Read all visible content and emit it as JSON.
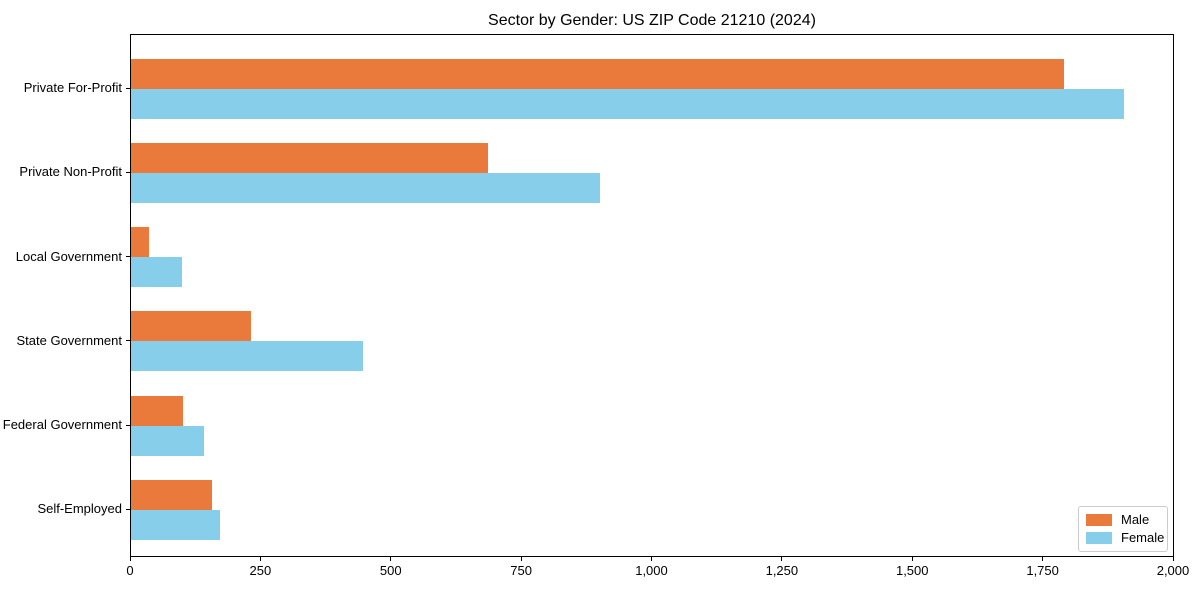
{
  "chart_data": {
    "type": "bar",
    "orientation": "horizontal",
    "title": "Sector by Gender: US ZIP Code 21210 (2024)",
    "categories": [
      "Private For-Profit",
      "Private Non-Profit",
      "Local Government",
      "State Government",
      "Federal Government",
      "Self-Employed"
    ],
    "series": [
      {
        "name": "Male",
        "color": "#E97A3C",
        "values": [
          1790,
          685,
          35,
          230,
          100,
          155
        ]
      },
      {
        "name": "Female",
        "color": "#87CEEB",
        "values": [
          1905,
          900,
          98,
          445,
          140,
          170
        ]
      }
    ],
    "xlabel": "",
    "ylabel": "",
    "xlim": [
      0,
      2000
    ],
    "xticks": [
      0,
      250,
      500,
      750,
      1000,
      1250,
      1500,
      1750,
      2000
    ],
    "xtick_labels": [
      "0",
      "250",
      "500",
      "750",
      "1,000",
      "1,250",
      "1,500",
      "1,750",
      "2,000"
    ],
    "grid": false,
    "legend_position": "lower right",
    "background_color": "#ffffff",
    "axis_color": "#000000"
  }
}
